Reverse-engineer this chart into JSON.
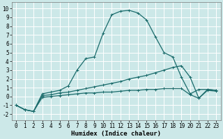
{
  "xlabel": "Humidex (Indice chaleur)",
  "bg_color": "#cce8e8",
  "grid_color": "#ffffff",
  "line_color": "#1a6b6b",
  "xlim": [
    -0.5,
    23.5
  ],
  "ylim": [
    -2.7,
    10.7
  ],
  "xticks": [
    0,
    1,
    2,
    3,
    4,
    5,
    6,
    7,
    8,
    9,
    10,
    11,
    12,
    13,
    14,
    15,
    16,
    17,
    18,
    19,
    20,
    21,
    22,
    23
  ],
  "yticks": [
    -2,
    -1,
    0,
    1,
    2,
    3,
    4,
    5,
    6,
    7,
    8,
    9,
    10
  ],
  "curve1_x": [
    0,
    1,
    2,
    3,
    4,
    5,
    6,
    7,
    8,
    9,
    10,
    11,
    12,
    13,
    14,
    15,
    16,
    17,
    18,
    19,
    20,
    21,
    22,
    23
  ],
  "curve1_y": [
    -1.0,
    -1.5,
    -1.7,
    0.3,
    0.5,
    0.7,
    1.2,
    3.0,
    4.3,
    4.5,
    7.2,
    9.3,
    9.7,
    9.8,
    9.5,
    8.7,
    6.8,
    5.0,
    4.5,
    2.2,
    0.3,
    0.8,
    0.8,
    0.7
  ],
  "curve2_x": [
    0,
    1,
    2,
    3,
    4,
    5,
    6,
    7,
    8,
    9,
    10,
    11,
    12,
    13,
    14,
    15,
    16,
    17,
    18,
    19,
    20,
    21,
    22,
    23
  ],
  "curve2_y": [
    -1.0,
    -1.5,
    -1.7,
    0.1,
    0.2,
    0.4,
    0.5,
    0.7,
    0.9,
    1.1,
    1.3,
    1.5,
    1.7,
    2.0,
    2.2,
    2.4,
    2.7,
    3.0,
    3.3,
    3.5,
    2.2,
    -0.2,
    0.8,
    0.7
  ],
  "curve3_x": [
    0,
    1,
    2,
    3,
    4,
    5,
    6,
    7,
    8,
    9,
    10,
    11,
    12,
    13,
    14,
    15,
    16,
    17,
    18,
    19,
    20,
    21,
    22,
    23
  ],
  "curve3_y": [
    -1.0,
    -1.5,
    -1.7,
    -0.1,
    0.0,
    0.1,
    0.2,
    0.3,
    0.4,
    0.4,
    0.5,
    0.5,
    0.6,
    0.7,
    0.7,
    0.8,
    0.8,
    0.9,
    0.9,
    0.9,
    0.2,
    -0.2,
    0.7,
    0.6
  ],
  "tick_fontsize": 5.5,
  "xlabel_fontsize": 6.5
}
